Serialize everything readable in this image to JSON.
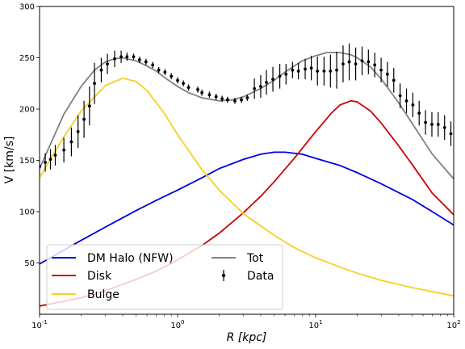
{
  "chart_data": {
    "type": "line",
    "title": "",
    "xlabel": "R [kpc]",
    "ylabel": "V [km/s]",
    "xscale": "log",
    "xlim": [
      0.1,
      100
    ],
    "ylim": [
      0,
      300
    ],
    "grid": false,
    "legend_position": "lower-left",
    "x_tick_labels": [
      "10^-1",
      "10^0",
      "10^1",
      "10^2"
    ],
    "y_ticks": [
      50,
      100,
      150,
      200,
      250,
      300
    ],
    "series": [
      {
        "name": "DM Halo (NFW)",
        "color": "#0000dd",
        "x": [
          0.1,
          0.2,
          0.3,
          0.5,
          0.7,
          1,
          1.5,
          2,
          3,
          4,
          5,
          6,
          8,
          10,
          15,
          20,
          30,
          50,
          70,
          100
        ],
        "y": [
          49,
          72,
          85,
          101,
          111,
          121,
          133,
          142,
          151,
          156,
          158,
          158,
          156,
          152,
          145,
          138,
          127,
          112,
          100,
          87
        ]
      },
      {
        "name": "Disk",
        "color": "#cc0000",
        "x": [
          0.1,
          0.2,
          0.3,
          0.5,
          0.7,
          1,
          1.5,
          2,
          3,
          4,
          5,
          7,
          10,
          13,
          15,
          18,
          20,
          25,
          30,
          40,
          50,
          70,
          100
        ],
        "y": [
          8,
          16,
          23,
          34,
          42,
          53,
          67,
          79,
          99,
          115,
          129,
          152,
          178,
          196,
          204,
          208,
          207,
          198,
          186,
          164,
          146,
          118,
          97
        ]
      },
      {
        "name": "Bulge",
        "color": "#f5d020",
        "x": [
          0.1,
          0.15,
          0.2,
          0.3,
          0.4,
          0.5,
          0.6,
          0.8,
          1,
          1.5,
          2,
          3,
          5,
          7,
          10,
          15,
          20,
          30,
          50,
          70,
          100
        ],
        "y": [
          133,
          173,
          198,
          223,
          230,
          227,
          218,
          196,
          175,
          141,
          121,
          98,
          77,
          65,
          55,
          46,
          40,
          33,
          26,
          22,
          18
        ]
      },
      {
        "name": "Tot",
        "color": "#808080",
        "x": [
          0.1,
          0.15,
          0.2,
          0.25,
          0.3,
          0.35,
          0.4,
          0.5,
          0.6,
          0.7,
          0.8,
          1,
          1.2,
          1.5,
          2,
          2.5,
          3,
          4,
          5,
          6,
          7,
          8,
          10,
          12,
          15,
          18,
          20,
          25,
          30,
          40,
          50,
          70,
          100
        ],
        "y": [
          142,
          195,
          222,
          238,
          246,
          249,
          250,
          247,
          242,
          237,
          231,
          222,
          216,
          211,
          208,
          209,
          212,
          220,
          228,
          236,
          242,
          247,
          252,
          255,
          255,
          253,
          250,
          241,
          229,
          206,
          186,
          156,
          132
        ]
      }
    ],
    "data_series": {
      "name": "Data",
      "color": "#000000",
      "x": [
        0.1,
        0.11,
        0.12,
        0.13,
        0.15,
        0.17,
        0.19,
        0.21,
        0.23,
        0.25,
        0.28,
        0.31,
        0.35,
        0.39,
        0.43,
        0.48,
        0.53,
        0.59,
        0.66,
        0.73,
        0.81,
        0.9,
        1.0,
        1.1,
        1.2,
        1.4,
        1.5,
        1.7,
        1.9,
        2.1,
        2.3,
        2.6,
        2.9,
        3.2,
        3.6,
        4.0,
        4.4,
        4.9,
        5.5,
        6.1,
        6.8,
        7.5,
        8.4,
        9.3,
        10.3,
        11.5,
        12.8,
        14.2,
        15.8,
        17.5,
        19.5,
        21.7,
        24.1,
        26.8,
        29.8,
        33.1,
        36.8,
        40.9,
        45.5,
        50.6,
        56.2,
        62.5,
        69.5,
        77.2,
        85.9,
        95.4
      ],
      "y": [
        144,
        148,
        151,
        155,
        160,
        168,
        178,
        190,
        203,
        225,
        238,
        244,
        249,
        251,
        251,
        251,
        248,
        246,
        243,
        238,
        236,
        232,
        228,
        225,
        221,
        219,
        216,
        214,
        212,
        210,
        209,
        208,
        209,
        211,
        220,
        222,
        226,
        229,
        232,
        234,
        238,
        237,
        239,
        240,
        237,
        237,
        237,
        238,
        244,
        246,
        244,
        247,
        246,
        243,
        238,
        234,
        228,
        213,
        208,
        204,
        196,
        187,
        185,
        185,
        182,
        176
      ],
      "err": [
        8,
        9,
        10,
        10,
        12,
        14,
        16,
        18,
        19,
        20,
        12,
        10,
        8,
        6,
        4,
        3,
        3,
        3,
        3,
        3,
        3,
        3,
        3,
        3,
        3,
        3,
        3,
        3,
        3,
        3,
        3,
        3,
        3,
        3,
        10,
        11,
        12,
        12,
        12,
        10,
        8,
        8,
        10,
        12,
        14,
        14,
        16,
        18,
        18,
        18,
        16,
        14,
        12,
        12,
        12,
        12,
        12,
        12,
        12,
        12,
        12,
        12,
        12,
        12,
        12,
        12
      ]
    }
  }
}
